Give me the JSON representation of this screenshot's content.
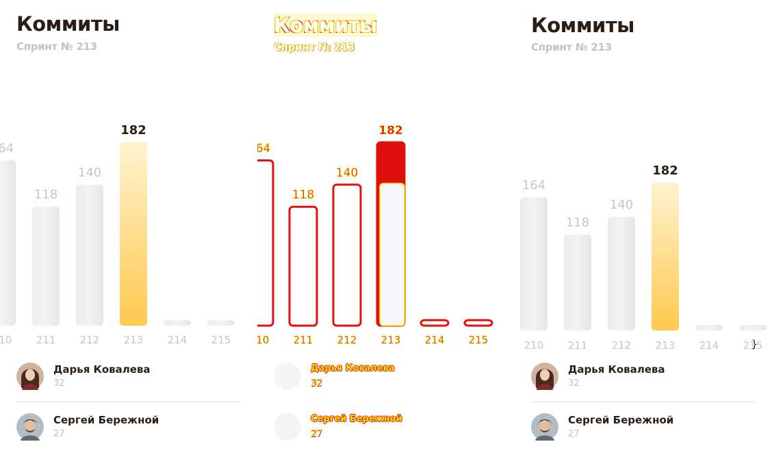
{
  "title": "Коммиты",
  "subtitle": "Спринт № 213",
  "brace": "}",
  "chart_data": {
    "type": "bar",
    "title": "Коммиты",
    "subtitle": "Спринт № 213",
    "categories": [
      "210",
      "211",
      "212",
      "213",
      "214",
      "215"
    ],
    "values": [
      164,
      118,
      140,
      182,
      null,
      null
    ],
    "highlighted": "213",
    "colors": {
      "bar": "#e6e6e6",
      "highlight_top": "#fff3cf",
      "highlight_bottom": "#ffc94f",
      "label": "#c6c6c6",
      "highlight_label": "#2a1e12",
      "outline_red": "#e01010",
      "outline_yellow": "#ffe800"
    }
  },
  "users": [
    {
      "name": "Дарья Ковалева",
      "count": "32",
      "avatar": "woman-avatar-icon"
    },
    {
      "name": "Сергей Бережной",
      "count": "27",
      "avatar": "man-avatar-icon"
    }
  ]
}
